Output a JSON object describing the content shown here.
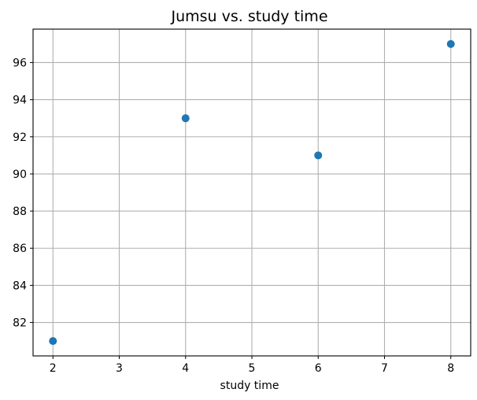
{
  "chart_data": {
    "type": "scatter",
    "title": "Jumsu vs. study time",
    "xlabel": "study time",
    "ylabel": "",
    "x": [
      2,
      4,
      6,
      8
    ],
    "y": [
      81,
      93,
      91,
      97
    ],
    "xlim": [
      1.7,
      8.3
    ],
    "ylim": [
      80.2,
      97.8
    ],
    "xticks": [
      2,
      3,
      4,
      5,
      6,
      7,
      8
    ],
    "yticks": [
      82,
      84,
      86,
      88,
      90,
      92,
      94,
      96
    ],
    "grid": true,
    "legend": "none",
    "point_color": "#1f77b4"
  }
}
